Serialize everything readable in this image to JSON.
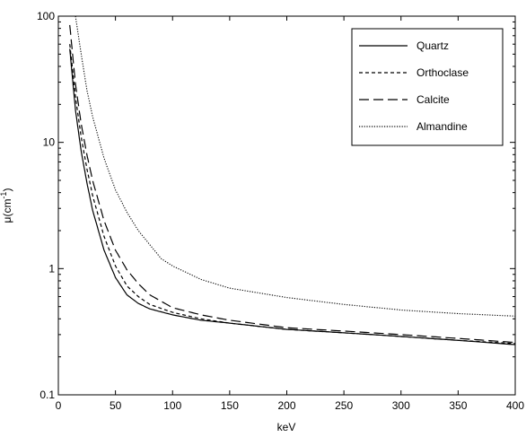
{
  "chart_data": {
    "type": "line",
    "title": "",
    "xlabel": "keV",
    "ylabel_main": "μ(cm",
    "ylabel_sup": "-1",
    "ylabel_close": ")",
    "xlim": [
      0,
      400
    ],
    "ylim": [
      0.1,
      100
    ],
    "yscale": "log",
    "grid": false,
    "legend_position": "top-right",
    "xticks": [
      "0",
      "50",
      "100",
      "150",
      "200",
      "250",
      "300",
      "350",
      "400"
    ],
    "yticks": [
      "0.1",
      "1",
      "10",
      "100"
    ],
    "series": [
      {
        "name": "Quartz",
        "style": "solid",
        "x": [
          10,
          15,
          20,
          25,
          30,
          40,
          50,
          60,
          70,
          80,
          100,
          125,
          150,
          200,
          250,
          300,
          350,
          400
        ],
        "y": [
          55,
          18,
          8.5,
          4.8,
          2.9,
          1.4,
          0.85,
          0.62,
          0.53,
          0.48,
          0.43,
          0.39,
          0.37,
          0.33,
          0.31,
          0.29,
          0.27,
          0.25
        ]
      },
      {
        "name": "Orthoclase",
        "style": "dashed",
        "x": [
          10,
          15,
          20,
          25,
          30,
          40,
          50,
          60,
          70,
          80,
          100,
          125,
          150,
          200,
          250,
          300,
          350,
          400
        ],
        "y": [
          60,
          23,
          11,
          6.2,
          3.8,
          1.8,
          1.05,
          0.73,
          0.6,
          0.52,
          0.45,
          0.4,
          0.37,
          0.33,
          0.31,
          0.29,
          0.27,
          0.255
        ]
      },
      {
        "name": "Calcite",
        "style": "longdash",
        "x": [
          10,
          15,
          20,
          25,
          30,
          40,
          50,
          60,
          70,
          80,
          100,
          125,
          150,
          200,
          250,
          300,
          350,
          400
        ],
        "y": [
          85,
          29,
          14,
          8,
          5,
          2.4,
          1.4,
          0.98,
          0.76,
          0.62,
          0.49,
          0.43,
          0.39,
          0.34,
          0.32,
          0.3,
          0.28,
          0.26
        ]
      },
      {
        "name": "Almandine",
        "style": "dotted",
        "x": [
          15,
          20,
          25,
          30,
          40,
          50,
          60,
          70,
          80,
          90,
          100,
          125,
          150,
          200,
          250,
          300,
          350,
          400
        ],
        "y": [
          100,
          50,
          26,
          16,
          7.5,
          4.2,
          2.8,
          2,
          1.55,
          1.2,
          1.05,
          0.82,
          0.7,
          0.59,
          0.52,
          0.47,
          0.44,
          0.42
        ]
      }
    ]
  }
}
